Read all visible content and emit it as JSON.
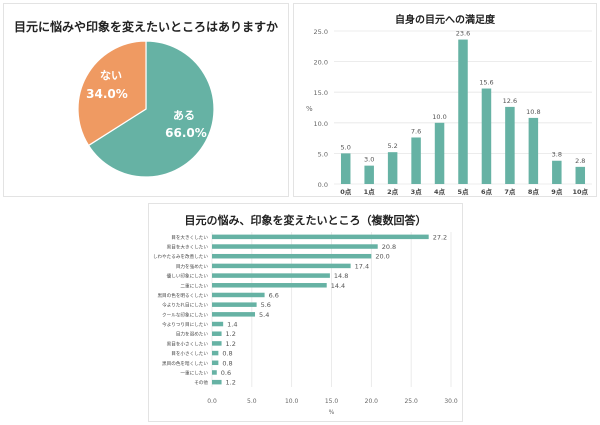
{
  "colors": {
    "teal": "#66b2a4",
    "orange": "#ef9a62",
    "grid": "#e6e6e6",
    "axis_text": "#666666"
  },
  "chart_data": [
    {
      "type": "pie",
      "title": "目元に悩みや印象を変えたいところはありますか",
      "categories": [
        "ある",
        "ない"
      ],
      "values": [
        66.0,
        34.0
      ],
      "labels": [
        "66.0%",
        "34.0%"
      ],
      "colors": [
        "#66b2a4",
        "#ef9a62"
      ]
    },
    {
      "type": "bar",
      "title": "自身の目元への満足度",
      "xlabel": "",
      "ylabel": "%",
      "categories": [
        "0点",
        "1点",
        "2点",
        "3点",
        "4点",
        "5点",
        "6点",
        "7点",
        "8点",
        "9点",
        "10点"
      ],
      "values": [
        5.0,
        3.0,
        5.2,
        7.6,
        10.0,
        23.6,
        15.6,
        12.6,
        10.8,
        3.8,
        2.8
      ],
      "ylim": [
        0,
        25
      ],
      "yticks": [
        "0.0",
        "5.0",
        "10.0",
        "15.0",
        "20.0",
        "25.0"
      ],
      "grid": true
    },
    {
      "type": "bar",
      "orientation": "horizontal",
      "title": "目元の悩み、印象を変えたいところ（複数回答）",
      "xlabel": "%",
      "ylabel": "",
      "categories": [
        "目を大きくしたい",
        "黒目を大きくしたい",
        "しわやたるみを改善したい",
        "目力を強めたい",
        "優しい印象にしたい",
        "二重にしたい",
        "黒目の色を明るくしたい",
        "今よりたれ目にしたい",
        "クールな印象にしたい",
        "今よりつり目にしたい",
        "目力を弱めたい",
        "黒目を小さくしたい",
        "目を小さくしたい",
        "黒目の色を暗くしたい",
        "一重にしたい",
        "その他"
      ],
      "values": [
        27.2,
        20.8,
        20.0,
        17.4,
        14.8,
        14.4,
        6.6,
        5.6,
        5.4,
        1.4,
        1.2,
        1.2,
        0.8,
        0.8,
        0.6,
        1.2
      ],
      "xlim": [
        0,
        30
      ],
      "xticks": [
        "0.0",
        "5.0",
        "10.0",
        "15.0",
        "20.0",
        "25.0",
        "30.0"
      ],
      "grid": true
    }
  ]
}
